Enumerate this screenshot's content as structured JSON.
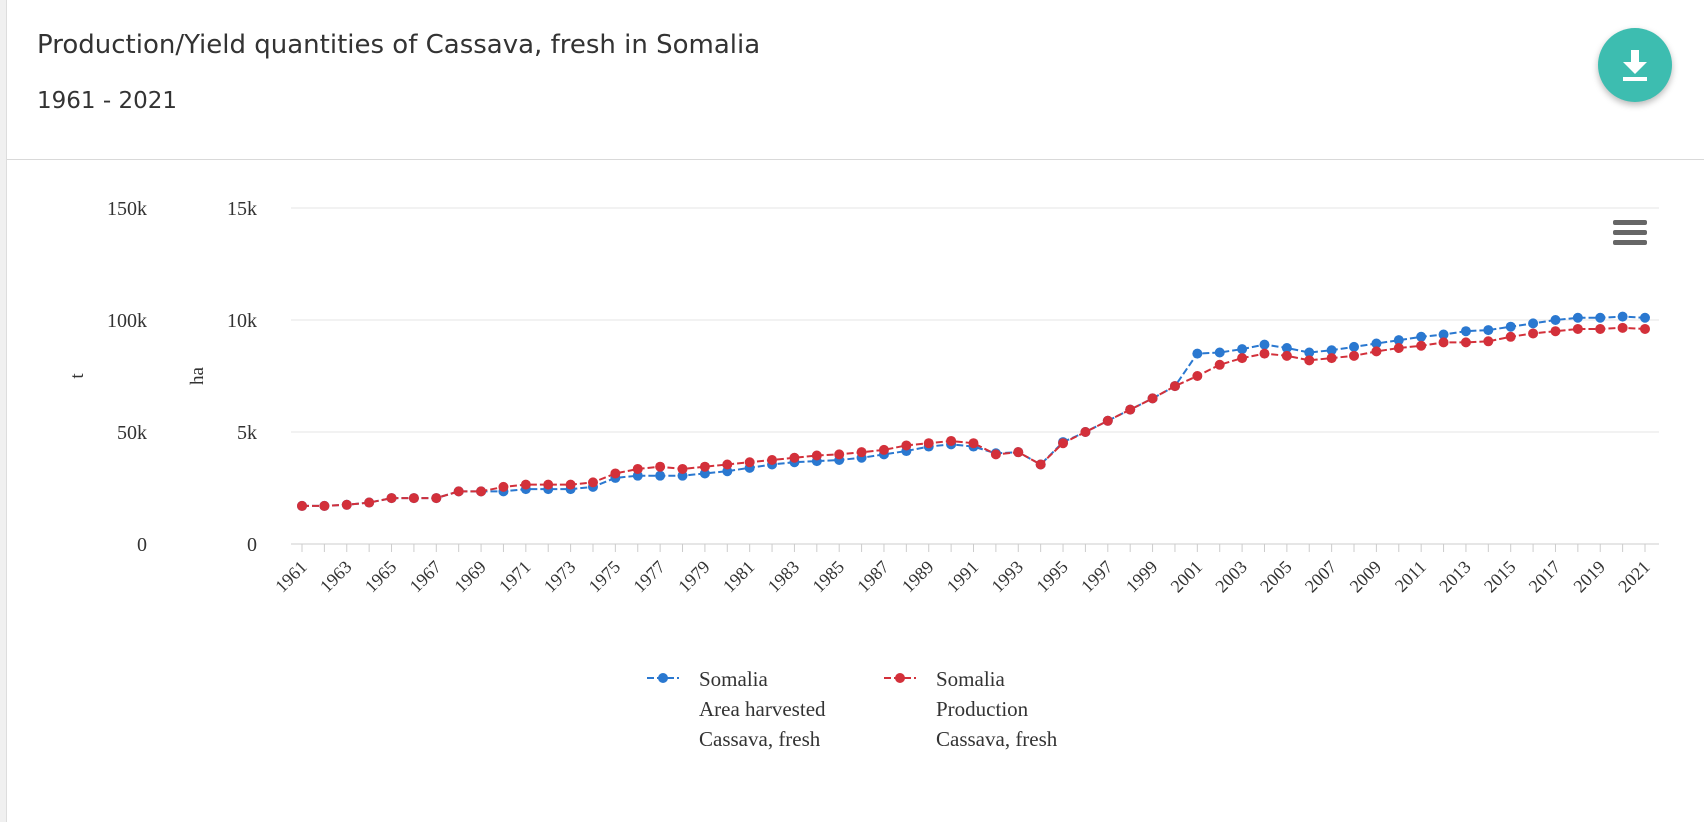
{
  "header": {
    "title": "Production/Yield quantities of Cassava, fresh in Somalia",
    "subtitle": "1961 - 2021"
  },
  "colors": {
    "area": "#2a78d0",
    "production": "#d3303a",
    "accent": "#3dbdb0"
  },
  "icons": {
    "download": "download-icon",
    "menu": "hamburger-menu-icon"
  },
  "chart_data": {
    "type": "line",
    "x": [
      1961,
      1962,
      1963,
      1964,
      1965,
      1966,
      1967,
      1968,
      1969,
      1970,
      1971,
      1972,
      1973,
      1974,
      1975,
      1976,
      1977,
      1978,
      1979,
      1980,
      1981,
      1982,
      1983,
      1984,
      1985,
      1986,
      1987,
      1988,
      1989,
      1990,
      1991,
      1992,
      1993,
      1994,
      1995,
      1996,
      1997,
      1998,
      1999,
      2000,
      2001,
      2002,
      2003,
      2004,
      2005,
      2006,
      2007,
      2008,
      2009,
      2010,
      2011,
      2012,
      2013,
      2014,
      2015,
      2016,
      2017,
      2018,
      2019,
      2020,
      2021
    ],
    "xtick_labels": [
      "1961",
      "1963",
      "1965",
      "1967",
      "1969",
      "1971",
      "1973",
      "1975",
      "1977",
      "1979",
      "1981",
      "1983",
      "1985",
      "1987",
      "1989",
      "1991",
      "1993",
      "1995",
      "1997",
      "1999",
      "2001",
      "2003",
      "2005",
      "2007",
      "2009",
      "2011",
      "2013",
      "2015",
      "2017",
      "2019",
      "2021"
    ],
    "axes": [
      {
        "label": "t",
        "ticks": [
          "0",
          "50k",
          "100k",
          "150k"
        ],
        "range": [
          0,
          150000
        ]
      },
      {
        "label": "ha",
        "ticks": [
          "0",
          "5k",
          "10k",
          "15k"
        ],
        "range": [
          0,
          15000
        ]
      }
    ],
    "series": [
      {
        "name": "Somalia Area harvested Cassava, fresh",
        "legend_lines": [
          "Somalia",
          "Area harvested",
          "Cassava, fresh"
        ],
        "axis": "ha",
        "values": [
          1700,
          1700,
          1750,
          1850,
          2050,
          2050,
          2050,
          2350,
          2350,
          2350,
          2450,
          2450,
          2450,
          2550,
          2950,
          3050,
          3050,
          3050,
          3150,
          3250,
          3400,
          3550,
          3650,
          3700,
          3750,
          3850,
          4000,
          4150,
          4350,
          4450,
          4350,
          4050,
          4100,
          3550,
          4550,
          5000,
          5500,
          6000,
          6500,
          7050,
          8500,
          8550,
          8700,
          8900,
          8750,
          8550,
          8650,
          8800,
          8950,
          9100,
          9250,
          9350,
          9500,
          9550,
          9700,
          9850,
          10000,
          10100,
          10100,
          10150,
          10100
        ]
      },
      {
        "name": "Somalia Production Cassava, fresh",
        "legend_lines": [
          "Somalia",
          "Production",
          "Cassava, fresh"
        ],
        "axis": "t",
        "values": [
          17000,
          17000,
          17500,
          18500,
          20500,
          20500,
          20500,
          23500,
          23500,
          25500,
          26500,
          26500,
          26500,
          27500,
          31500,
          33500,
          34500,
          33500,
          34500,
          35500,
          36500,
          37500,
          38500,
          39500,
          40000,
          41000,
          42000,
          44000,
          45000,
          46000,
          45000,
          40000,
          41000,
          35500,
          45000,
          50000,
          55000,
          60000,
          65000,
          70500,
          75000,
          80000,
          83000,
          85000,
          84000,
          82000,
          83000,
          84000,
          86000,
          87500,
          88500,
          90000,
          90000,
          90500,
          92500,
          94000,
          95000,
          96000,
          96000,
          96500,
          96000
        ]
      }
    ],
    "grid": true,
    "legend_position": "bottom-center"
  }
}
